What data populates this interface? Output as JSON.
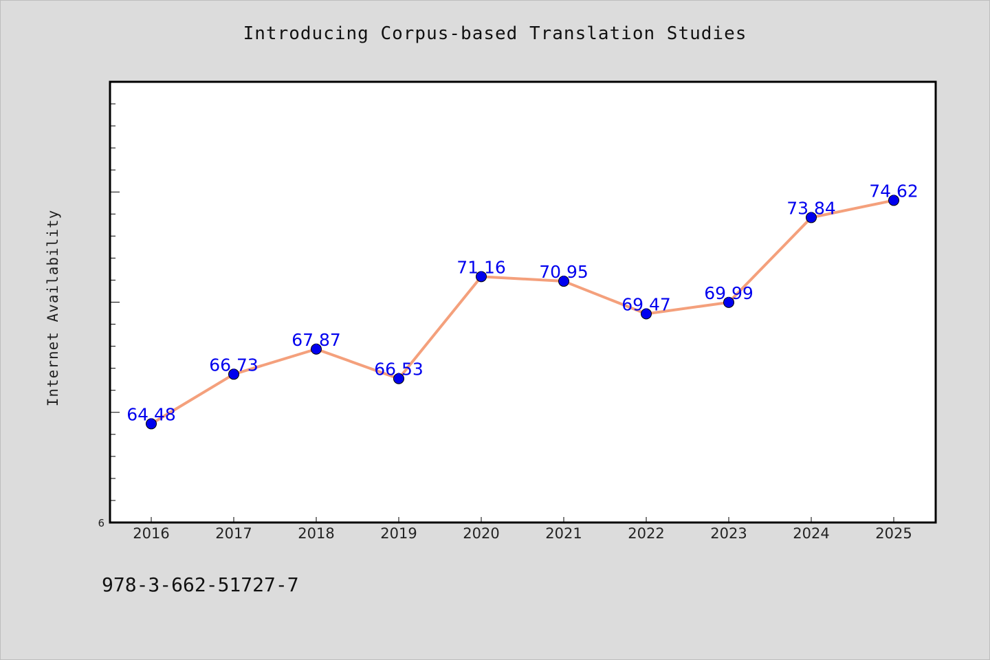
{
  "title": "Introducing Corpus-based Translation Studies",
  "footer": "978-3-662-51727-7",
  "colors": {
    "line": "#f4a07c",
    "marker": "#0000ee",
    "label": "#0000ee",
    "background": "#dcdcdc",
    "plot_background": "#ffffff"
  },
  "chart_data": {
    "type": "line",
    "ylabel": "Internet Availability",
    "xlabel": "",
    "categories": [
      "2016",
      "2017",
      "2018",
      "2019",
      "2020",
      "2021",
      "2022",
      "2023",
      "2024",
      "2025"
    ],
    "values": [
      64.48,
      66.73,
      67.87,
      66.53,
      71.16,
      70.95,
      69.47,
      69.99,
      73.84,
      74.62
    ],
    "data_labels": [
      "64.48",
      "66.73",
      "67.87",
      "66.53",
      "71.16",
      "70.95",
      "69.47",
      "69.99",
      "73.84",
      "74.62"
    ],
    "ylim": [
      60,
      80
    ],
    "ytick_labels": [
      "6"
    ],
    "grid": false,
    "legend": "none"
  }
}
